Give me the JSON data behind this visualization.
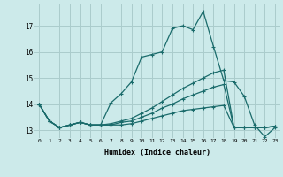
{
  "xlabel": "Humidex (Indice chaleur)",
  "bg_color": "#cceaea",
  "grid_color": "#aacccc",
  "line_color": "#1a6b6b",
  "xlim": [
    -0.5,
    23.5
  ],
  "ylim": [
    12.7,
    17.85
  ],
  "xticks": [
    0,
    1,
    2,
    3,
    4,
    5,
    6,
    7,
    8,
    9,
    10,
    11,
    12,
    13,
    14,
    15,
    16,
    17,
    18,
    19,
    20,
    21,
    22,
    23
  ],
  "yticks": [
    13,
    14,
    15,
    16,
    17
  ],
  "line1_x": [
    0,
    1,
    2,
    3,
    4,
    5,
    6,
    7,
    8,
    9,
    10,
    11,
    12,
    13,
    14,
    15,
    16,
    17,
    18,
    19,
    20,
    21,
    22,
    23
  ],
  "line1_y": [
    14.0,
    13.35,
    13.1,
    13.2,
    13.3,
    13.2,
    13.2,
    14.05,
    14.4,
    14.85,
    15.8,
    15.9,
    16.0,
    16.9,
    17.0,
    16.85,
    17.55,
    16.2,
    14.9,
    14.85,
    14.3,
    13.2,
    12.75,
    13.1
  ],
  "line2_x": [
    0,
    1,
    2,
    3,
    4,
    5,
    6,
    7,
    8,
    9,
    10,
    11,
    12,
    13,
    14,
    15,
    16,
    17,
    18,
    19,
    20,
    21,
    22,
    23
  ],
  "line2_y": [
    14.0,
    13.35,
    13.1,
    13.2,
    13.3,
    13.2,
    13.2,
    13.25,
    13.35,
    13.45,
    13.65,
    13.85,
    14.1,
    14.35,
    14.6,
    14.8,
    15.0,
    15.2,
    15.3,
    13.1,
    13.1,
    13.1,
    13.1,
    13.15
  ],
  "line3_x": [
    0,
    1,
    2,
    3,
    4,
    5,
    6,
    7,
    8,
    9,
    10,
    11,
    12,
    13,
    14,
    15,
    16,
    17,
    18,
    19,
    20,
    21,
    22,
    23
  ],
  "line3_y": [
    14.0,
    13.35,
    13.1,
    13.2,
    13.3,
    13.2,
    13.2,
    13.2,
    13.3,
    13.35,
    13.5,
    13.65,
    13.85,
    14.0,
    14.2,
    14.35,
    14.5,
    14.65,
    14.75,
    13.1,
    13.1,
    13.1,
    13.1,
    13.15
  ],
  "line4_x": [
    0,
    1,
    2,
    3,
    4,
    5,
    6,
    7,
    8,
    9,
    10,
    11,
    12,
    13,
    14,
    15,
    16,
    17,
    18,
    19,
    20,
    21,
    22,
    23
  ],
  "line4_y": [
    14.0,
    13.35,
    13.1,
    13.2,
    13.3,
    13.2,
    13.2,
    13.2,
    13.2,
    13.25,
    13.35,
    13.45,
    13.55,
    13.65,
    13.75,
    13.8,
    13.85,
    13.9,
    13.95,
    13.1,
    13.1,
    13.1,
    13.1,
    13.15
  ]
}
